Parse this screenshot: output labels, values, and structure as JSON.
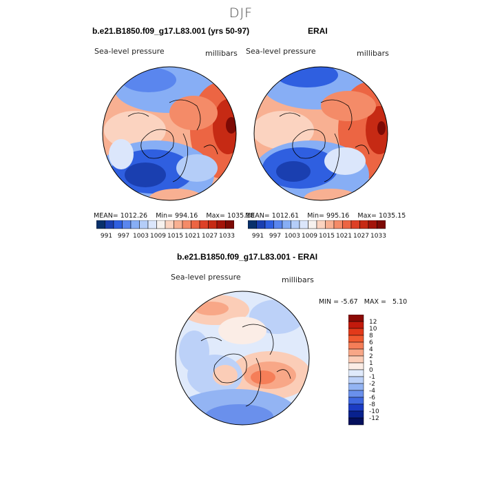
{
  "title": "DJF",
  "panels": [
    {
      "title": "b.e21.B1850.f09_g17.L83.001 (yrs 50-97)",
      "variable": "Sea-level pressure",
      "units": "millibars",
      "stats": {
        "mean_label": "MEAN=",
        "mean": "1012.26",
        "min_label": "Min=",
        "min": "994.16",
        "max_label": "Max=",
        "max": "1035.18"
      }
    },
    {
      "title": "ERAI",
      "variable": "Sea-level pressure",
      "units": "millibars",
      "stats": {
        "mean_label": "MEAN=",
        "mean": "1012.61",
        "min_label": "Min=",
        "min": "995.16",
        "max_label": "Max=",
        "max": "1035.15"
      }
    },
    {
      "title": "b.e21.B1850.f09_g17.L83.001 - ERAI",
      "variable": "Sea-level pressure",
      "units": "millibars",
      "stats": {
        "min_label": "MIN =",
        "min": "-5.67",
        "max_label": "MAX =",
        "max": "5.10"
      }
    }
  ],
  "colorbar_abs": {
    "ticks": [
      "991",
      "997",
      "1003",
      "1009",
      "1015",
      "1021",
      "1027",
      "1033"
    ],
    "colors": [
      "#08306b",
      "#1a3fb0",
      "#2f5fe0",
      "#5a86ee",
      "#87aef5",
      "#b4cdf8",
      "#dbe6fb",
      "#f6f1ee",
      "#fbd3c0",
      "#f8b092",
      "#f48b68",
      "#ec6543",
      "#dd4027",
      "#c62a14",
      "#a3140a",
      "#7d0a05"
    ]
  },
  "colorbar_diff": {
    "ticks": [
      "12",
      "10",
      "8",
      "6",
      "4",
      "2",
      "1",
      "0",
      "-1",
      "-2",
      "-4",
      "-6",
      "-8",
      "-10",
      "-12"
    ],
    "colors": [
      "#8b0a05",
      "#c21a0c",
      "#e23a1a",
      "#f05a30",
      "#f57e58",
      "#f8a787",
      "#fbcdb7",
      "#fbede6",
      "#e0eafb",
      "#bcd1f8",
      "#93b4f3",
      "#6a90ec",
      "#3f68e0",
      "#1b3cc4",
      "#08218e",
      "#040f5c"
    ]
  }
}
